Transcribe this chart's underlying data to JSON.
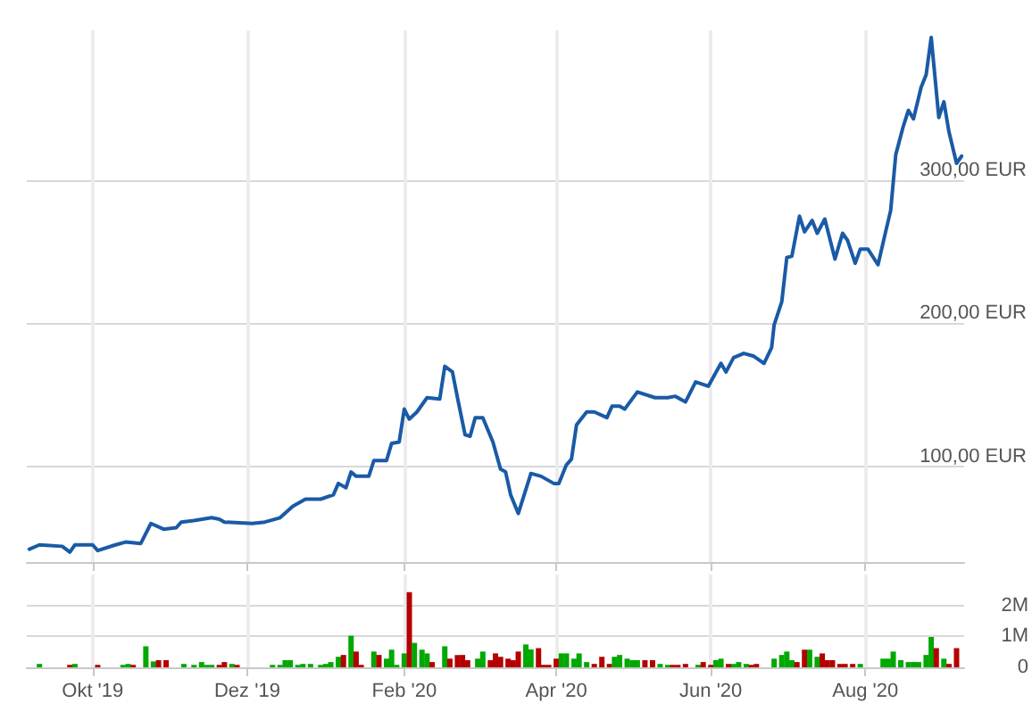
{
  "chart_data": [
    {
      "type": "line",
      "tick_labels": "y",
      "grid": true,
      "marker": "none",
      "line_style": "solid",
      "xlim": [
        "2019-09-05",
        "2020-09-09"
      ],
      "xticks": [
        {
          "value": "2019-10-01",
          "label": null
        },
        {
          "value": "2019-12-01",
          "label": null
        },
        {
          "value": "2020-02-01",
          "label": null
        },
        {
          "value": "2020-04-01",
          "label": null
        },
        {
          "value": "2020-06-01",
          "label": null
        },
        {
          "value": "2020-08-01",
          "label": null
        }
      ],
      "ylim": [
        33,
        405
      ],
      "yticks": [
        {
          "value": 100,
          "label": "100,00 EUR"
        },
        {
          "value": 200,
          "label": "200,00 EUR"
        },
        {
          "value": 300,
          "label": "300,00 EUR"
        }
      ],
      "series": [
        {
          "color": "#1a5aa6",
          "x": [
            "2019-09-06",
            "2019-09-10",
            "2019-09-19",
            "2019-09-22",
            "2019-09-24",
            "2019-10-01",
            "2019-10-03",
            "2019-10-10",
            "2019-10-14",
            "2019-10-20",
            "2019-10-24",
            "2019-10-29",
            "2019-11-03",
            "2019-11-05",
            "2019-11-10",
            "2019-11-17",
            "2019-11-20",
            "2019-11-22",
            "2019-12-03",
            "2019-12-08",
            "2019-12-14",
            "2019-12-19",
            "2019-12-24",
            "2019-12-30",
            "2020-01-04",
            "2020-01-06",
            "2020-01-09",
            "2020-01-11",
            "2020-01-13",
            "2020-01-18",
            "2020-01-20",
            "2020-01-25",
            "2020-01-27",
            "2020-01-30",
            "2020-02-01",
            "2020-02-03",
            "2020-02-06",
            "2020-02-10",
            "2020-02-15",
            "2020-02-17",
            "2020-02-20",
            "2020-02-22",
            "2020-02-25",
            "2020-02-27",
            "2020-02-29",
            "2020-03-03",
            "2020-03-07",
            "2020-03-10",
            "2020-03-12",
            "2020-03-14",
            "2020-03-17",
            "2020-03-22",
            "2020-03-26",
            "2020-03-31",
            "2020-04-02",
            "2020-04-05",
            "2020-04-07",
            "2020-04-09",
            "2020-04-13",
            "2020-04-16",
            "2020-04-21",
            "2020-04-23",
            "2020-04-26",
            "2020-04-28",
            "2020-05-03",
            "2020-05-10",
            "2020-05-15",
            "2020-05-18",
            "2020-05-22",
            "2020-05-26",
            "2020-05-31",
            "2020-06-05",
            "2020-06-07",
            "2020-06-10",
            "2020-06-14",
            "2020-06-18",
            "2020-06-22",
            "2020-06-25",
            "2020-06-26",
            "2020-06-29",
            "2020-07-01",
            "2020-07-03",
            "2020-07-06",
            "2020-07-08",
            "2020-07-11",
            "2020-07-13",
            "2020-07-16",
            "2020-07-20",
            "2020-07-23",
            "2020-07-25",
            "2020-07-28",
            "2020-07-30",
            "2020-08-02",
            "2020-08-06",
            "2020-08-09",
            "2020-08-11",
            "2020-08-13",
            "2020-08-16",
            "2020-08-18",
            "2020-08-20",
            "2020-08-23",
            "2020-08-25",
            "2020-08-27",
            "2020-08-30",
            "2020-09-01",
            "2020-09-03",
            "2020-09-06",
            "2020-09-08"
          ],
          "values": [
            42,
            45,
            44,
            40,
            45,
            45,
            41,
            45,
            47,
            46,
            60,
            56,
            57,
            61,
            62,
            64,
            63,
            61,
            60,
            61,
            64,
            72,
            77,
            77,
            80,
            88,
            85,
            96,
            93,
            93,
            104,
            104,
            116,
            117,
            140,
            133,
            138,
            148,
            147,
            170,
            166,
            148,
            122,
            121,
            134,
            134,
            117,
            98,
            96,
            80,
            67,
            95,
            93,
            88,
            88,
            101,
            105,
            129,
            138,
            138,
            134,
            142,
            142,
            140,
            152,
            148,
            148,
            149,
            145,
            159,
            156,
            172,
            166,
            176,
            179,
            177,
            172,
            183,
            199,
            215,
            246,
            247,
            275,
            264,
            272,
            263,
            273,
            245,
            263,
            258,
            242,
            252,
            252,
            241,
            264,
            279,
            318,
            338,
            349,
            343,
            365,
            374,
            400,
            344,
            355,
            334,
            312,
            317
          ]
        }
      ]
    },
    {
      "type": "bar",
      "grid": true,
      "xlim": [
        "2019-09-05",
        "2020-09-09"
      ],
      "xticks": [
        {
          "value": "2019-10-01",
          "label": "Okt '19"
        },
        {
          "value": "2019-12-01",
          "label": "Dez '19"
        },
        {
          "value": "2020-02-01",
          "label": "Feb '20"
        },
        {
          "value": "2020-04-01",
          "label": "Apr '20"
        },
        {
          "value": "2020-06-01",
          "label": "Jun '20"
        },
        {
          "value": "2020-08-01",
          "label": "Aug '20"
        }
      ],
      "ylim": [
        0,
        3
      ],
      "yticks": [
        0,
        {
          "value": 1,
          "label": "1M"
        },
        {
          "value": 2,
          "label": "2M"
        }
      ],
      "x": [
        "2019-09-10",
        "2019-09-22",
        "2019-09-24",
        "2019-10-03",
        "2019-10-13",
        "2019-10-15",
        "2019-10-17",
        "2019-10-22",
        "2019-10-25",
        "2019-10-27",
        "2019-10-30",
        "2019-11-06",
        "2019-11-10",
        "2019-11-13",
        "2019-11-15",
        "2019-11-17",
        "2019-11-20",
        "2019-11-22",
        "2019-11-25",
        "2019-11-27",
        "2019-12-11",
        "2019-12-14",
        "2019-12-16",
        "2019-12-18",
        "2019-12-21",
        "2019-12-23",
        "2019-12-26",
        "2019-12-30",
        "2020-01-01",
        "2020-01-03",
        "2020-01-06",
        "2020-01-08",
        "2020-01-11",
        "2020-01-13",
        "2020-01-15",
        "2020-01-20",
        "2020-01-22",
        "2020-01-25",
        "2020-01-27",
        "2020-01-29",
        "2020-02-01",
        "2020-02-03",
        "2020-02-05",
        "2020-02-08",
        "2020-02-10",
        "2020-02-12",
        "2020-02-17",
        "2020-02-19",
        "2020-02-22",
        "2020-02-24",
        "2020-02-26",
        "2020-03-01",
        "2020-03-03",
        "2020-03-06",
        "2020-03-08",
        "2020-03-10",
        "2020-03-13",
        "2020-03-15",
        "2020-03-17",
        "2020-03-20",
        "2020-03-22",
        "2020-03-25",
        "2020-03-27",
        "2020-03-29",
        "2020-04-01",
        "2020-04-03",
        "2020-04-05",
        "2020-04-08",
        "2020-04-10",
        "2020-04-13",
        "2020-04-16",
        "2020-04-19",
        "2020-04-22",
        "2020-04-24",
        "2020-04-26",
        "2020-04-29",
        "2020-05-01",
        "2020-05-03",
        "2020-05-06",
        "2020-05-09",
        "2020-05-12",
        "2020-05-15",
        "2020-05-17",
        "2020-05-19",
        "2020-05-22",
        "2020-05-27",
        "2020-05-29",
        "2020-06-01",
        "2020-06-03",
        "2020-06-05",
        "2020-06-08",
        "2020-06-10",
        "2020-06-12",
        "2020-06-15",
        "2020-06-17",
        "2020-06-19",
        "2020-06-26",
        "2020-06-29",
        "2020-07-01",
        "2020-07-03",
        "2020-07-05",
        "2020-07-08",
        "2020-07-10",
        "2020-07-13",
        "2020-07-15",
        "2020-07-17",
        "2020-07-19",
        "2020-07-22",
        "2020-07-24",
        "2020-07-27",
        "2020-07-30",
        "2020-08-08",
        "2020-08-10",
        "2020-08-12",
        "2020-08-15",
        "2020-08-18",
        "2020-08-20",
        "2020-08-22",
        "2020-08-25",
        "2020-08-27",
        "2020-08-29",
        "2020-09-01",
        "2020-09-03",
        "2020-09-06"
      ],
      "values": [
        0.11,
        0.08,
        0.11,
        0.08,
        0.08,
        0.11,
        0.08,
        0.68,
        0.19,
        0.23,
        0.23,
        0.11,
        0.08,
        0.17,
        0.08,
        0.08,
        0.08,
        0.17,
        0.11,
        0.08,
        0.08,
        0.08,
        0.23,
        0.23,
        0.08,
        0.11,
        0.11,
        0.08,
        0.11,
        0.17,
        0.34,
        0.4,
        1.02,
        0.51,
        0.08,
        0.51,
        0.4,
        0.28,
        0.57,
        0.08,
        0.45,
        2.43,
        0.79,
        0.57,
        0.45,
        0.17,
        0.68,
        0.28,
        0.4,
        0.4,
        0.23,
        0.28,
        0.51,
        0.23,
        0.45,
        0.34,
        0.28,
        0.23,
        0.51,
        0.74,
        0.58,
        0.62,
        0.08,
        0.08,
        0.28,
        0.45,
        0.45,
        0.28,
        0.45,
        0.17,
        0.11,
        0.34,
        0.11,
        0.34,
        0.4,
        0.28,
        0.23,
        0.23,
        0.23,
        0.23,
        0.11,
        0.08,
        0.08,
        0.08,
        0.11,
        0.08,
        0.17,
        0.08,
        0.23,
        0.28,
        0.11,
        0.11,
        0.17,
        0.11,
        0.08,
        0.11,
        0.28,
        0.4,
        0.51,
        0.23,
        0.17,
        0.57,
        0.57,
        0.34,
        0.45,
        0.23,
        0.23,
        0.11,
        0.11,
        0.11,
        0.11,
        0.28,
        0.28,
        0.51,
        0.23,
        0.17,
        0.17,
        0.17,
        0.4,
        0.98,
        0.62,
        0.28,
        0.11,
        0.62
      ],
      "colors": [
        "#00a800",
        "#b40000",
        "#00a800",
        "#b40000",
        "#00a800",
        "#00a800",
        "#b40000",
        "#00a800",
        "#00a800",
        "#b40000",
        "#b40000",
        "#00a800",
        "#00a800",
        "#00a800",
        "#00a800",
        "#00a800",
        "#b40000",
        "#b40000",
        "#00a800",
        "#b40000",
        "#00a800",
        "#00a800",
        "#00a800",
        "#00a800",
        "#00a800",
        "#00a800",
        "#00a800",
        "#00a800",
        "#00a800",
        "#00a800",
        "#00a800",
        "#b40000",
        "#00a800",
        "#b40000",
        "#b40000",
        "#00a800",
        "#b40000",
        "#00a800",
        "#00a800",
        "#00a800",
        "#00a800",
        "#b40000",
        "#00a800",
        "#00a800",
        "#00a800",
        "#b40000",
        "#00a800",
        "#b40000",
        "#b40000",
        "#b40000",
        "#b40000",
        "#00a800",
        "#00a800",
        "#b40000",
        "#b40000",
        "#b40000",
        "#b40000",
        "#b40000",
        "#b40000",
        "#00a800",
        "#00a800",
        "#b40000",
        "#b40000",
        "#b40000",
        "#b40000",
        "#00a800",
        "#00a800",
        "#00a800",
        "#00a800",
        "#00a800",
        "#b40000",
        "#b40000",
        "#b40000",
        "#00a800",
        "#00a800",
        "#00a800",
        "#00a800",
        "#00a800",
        "#b40000",
        "#b40000",
        "#00a800",
        "#00a800",
        "#b40000",
        "#b40000",
        "#b40000",
        "#00a800",
        "#b40000",
        "#b40000",
        "#00a800",
        "#00a800",
        "#b40000",
        "#00a800",
        "#00a800",
        "#00a800",
        "#b40000",
        "#b40000",
        "#00a800",
        "#00a800",
        "#00a800",
        "#00a800",
        "#b40000",
        "#b40000",
        "#00a800",
        "#00a800",
        "#b40000",
        "#b40000",
        "#b40000",
        "#b40000",
        "#b40000",
        "#b40000",
        "#00a800",
        "#00a800",
        "#00a800",
        "#00a800",
        "#00a800",
        "#00a800",
        "#00a800",
        "#00a800",
        "#00a800",
        "#00a800",
        "#b40000",
        "#00a800",
        "#b40000",
        "#b40000"
      ]
    }
  ]
}
